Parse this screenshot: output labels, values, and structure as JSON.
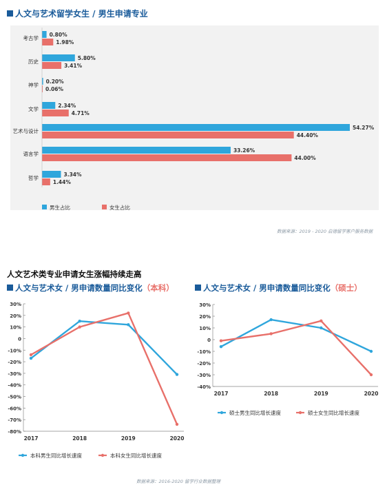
{
  "header": {
    "title": "人文与艺术留学女生 / 男生申请专业"
  },
  "section": {
    "title": "人文艺术类专业申请女生涨幅持续走高"
  },
  "sources": {
    "top": "数据来源：2019 - 2020 启德留学客户服务数据",
    "bottom": "数据来源：2016-2020 留学行业数据整理"
  },
  "colors": {
    "blue": "#2fa6dc",
    "red": "#e8706a",
    "title": "#1a5b9a"
  },
  "chart_data": [
    {
      "type": "bar",
      "orientation": "horizontal",
      "title": "人文与艺术留学女生 / 男生申请专业",
      "categories": [
        "考古学",
        "历史",
        "神学",
        "文学",
        "艺术与设计",
        "语言学",
        "哲学"
      ],
      "series": [
        {
          "name": "男生占比",
          "values": [
            0.8,
            5.8,
            0.2,
            2.34,
            54.27,
            33.26,
            3.34
          ],
          "labels": [
            "0.80%",
            "5.80%",
            "0.20%",
            "2.34%",
            "54.27%",
            "33.26%",
            "3.34%"
          ]
        },
        {
          "name": "女生占比",
          "values": [
            1.98,
            3.41,
            0.06,
            4.71,
            44.4,
            44.0,
            1.44
          ],
          "labels": [
            "1.98%",
            "3.41%",
            "0.06%",
            "4.71%",
            "44.40%",
            "44.00%",
            "1.44%"
          ]
        }
      ],
      "legend": "bottom-left",
      "xlim": [
        0,
        55
      ]
    },
    {
      "type": "line",
      "title": "人文与艺术女 / 男申请数量同比变化",
      "title_highlight": "（本科）",
      "x": [
        "2017",
        "2018",
        "2019",
        "2020"
      ],
      "series": [
        {
          "name": "本科男生同比增长速度",
          "values": [
            -17,
            15,
            12,
            -31
          ]
        },
        {
          "name": "本科女生同比增长速度",
          "values": [
            -14,
            10,
            22,
            -74
          ]
        }
      ],
      "ylim": [
        -80,
        30
      ],
      "yticks": [
        "30%",
        "20%",
        "10%",
        "0",
        "-10%",
        "-20%",
        "-30%",
        "-40%",
        "-50%",
        "-60%",
        "-70%",
        "-80%"
      ],
      "legend": "bottom"
    },
    {
      "type": "line",
      "title": "人文与艺术女 / 男申请数量同比变化",
      "title_highlight": "（硕士）",
      "x": [
        "2017",
        "2018",
        "2019",
        "2020"
      ],
      "series": [
        {
          "name": "硕士男生同比增长速度",
          "values": [
            -6,
            17,
            10,
            -10
          ]
        },
        {
          "name": "硕士女生同比增长速度",
          "values": [
            -1,
            5,
            16,
            -30
          ]
        }
      ],
      "ylim": [
        -40,
        30
      ],
      "yticks": [
        "30%",
        "20%",
        "10%",
        "0",
        "-10%",
        "-20%",
        "-30%",
        "-40%"
      ],
      "legend": "bottom"
    }
  ]
}
